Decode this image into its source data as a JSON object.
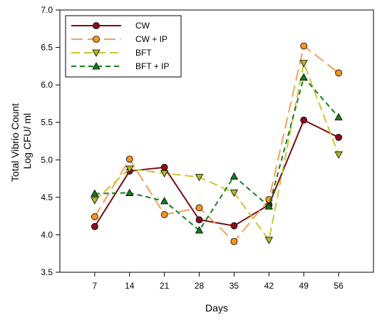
{
  "chart_data": {
    "type": "line",
    "xlabel": "Days",
    "ylabel": [
      "Total Vibrio Count",
      "Log CFU/ ml"
    ],
    "x": [
      7,
      14,
      21,
      28,
      35,
      42,
      49,
      56
    ],
    "xlim": [
      0,
      63
    ],
    "ylim": [
      3.5,
      7.0
    ],
    "yticks": [
      "3.5",
      "4.0",
      "4.5",
      "5.0",
      "5.5",
      "6.0",
      "6.5",
      "7.0"
    ],
    "grid": false,
    "legend_position": "top-left",
    "series": [
      {
        "name": "CW",
        "values": [
          4.11,
          4.85,
          4.9,
          4.2,
          4.12,
          4.4,
          5.53,
          5.3
        ],
        "color": "#7a0a14",
        "marker": "circle",
        "marker_fill": "#8b0f1c",
        "line_style": "solid"
      },
      {
        "name": "CW + IP",
        "values": [
          4.24,
          5.01,
          4.27,
          4.36,
          3.91,
          4.47,
          6.52,
          6.16
        ],
        "color": "#f3a05a",
        "marker": "circle",
        "marker_fill": "#f7941d",
        "line_style": "long-dash"
      },
      {
        "name": "BFT",
        "values": [
          4.46,
          4.88,
          4.82,
          4.77,
          4.56,
          3.93,
          6.29,
          5.07
        ],
        "color": "#c8c82e",
        "marker": "triangle-down",
        "marker_fill": "#b5b52a",
        "line_style": "dash"
      },
      {
        "name": "BFT + IP",
        "values": [
          4.55,
          4.56,
          4.45,
          4.06,
          4.78,
          4.38,
          6.1,
          5.57
        ],
        "color": "#14801e",
        "marker": "triangle-up",
        "marker_fill": "#147a1e",
        "line_style": "short-dash"
      }
    ]
  }
}
